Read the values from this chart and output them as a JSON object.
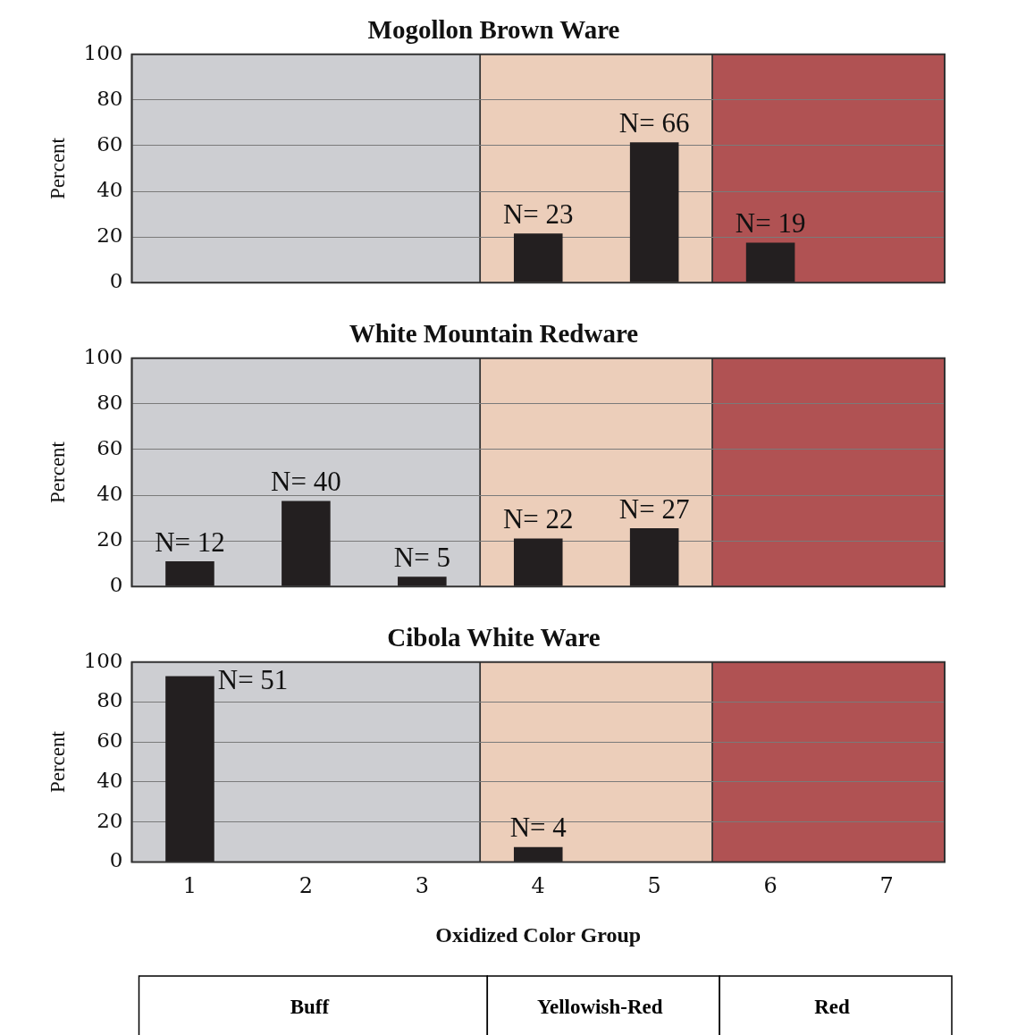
{
  "chart_data": [
    {
      "type": "bar",
      "title": "Mogollon Brown Ware",
      "ylabel": "Percent",
      "categories": [
        "1",
        "2",
        "3",
        "4",
        "5",
        "6",
        "7"
      ],
      "values": [
        null,
        null,
        null,
        21.5,
        61.5,
        17.5,
        null
      ],
      "color": "#231f20",
      "ylim": [
        0,
        100
      ],
      "yticks": [
        0,
        20,
        40,
        60,
        80,
        100
      ],
      "grid": "y",
      "tick_labels": "y",
      "annotations": [
        {
          "text": "N= 23",
          "x": "4",
          "y": 21.5
        },
        {
          "text": "N= 66",
          "x": "5",
          "y": 61.5
        },
        {
          "text": "N= 19",
          "x": "6",
          "y": 17.5
        }
      ],
      "bands": [
        {
          "axis": "x",
          "from": "1",
          "to": "3",
          "color": "#cdced2"
        },
        {
          "axis": "x",
          "from": "4",
          "to": "5",
          "color": "#ecceba"
        },
        {
          "axis": "x",
          "from": "6",
          "to": "7",
          "color": "#b05253"
        }
      ]
    },
    {
      "type": "bar",
      "title": "White Mountain Redware",
      "ylabel": "Percent",
      "categories": [
        "1",
        "2",
        "3",
        "4",
        "5",
        "6",
        "7"
      ],
      "values": [
        11,
        37.5,
        4.3,
        21,
        25.5,
        null,
        null
      ],
      "color": "#231f20",
      "ylim": [
        0,
        100
      ],
      "yticks": [
        0,
        20,
        40,
        60,
        80,
        100
      ],
      "grid": "y",
      "tick_labels": "y",
      "annotations": [
        {
          "text": "N= 12",
          "x": "1",
          "y": 11
        },
        {
          "text": "N= 40",
          "x": "2",
          "y": 37.5
        },
        {
          "text": "N= 5",
          "x": "3",
          "y": 4.3
        },
        {
          "text": "N= 22",
          "x": "4",
          "y": 21
        },
        {
          "text": "N= 27",
          "x": "5",
          "y": 25.5
        }
      ],
      "bands": [
        {
          "axis": "x",
          "from": "1",
          "to": "3",
          "color": "#cdced2"
        },
        {
          "axis": "x",
          "from": "4",
          "to": "5",
          "color": "#ecceba"
        },
        {
          "axis": "x",
          "from": "6",
          "to": "7",
          "color": "#b05253"
        }
      ]
    },
    {
      "type": "bar",
      "title": "Cibola White Ware",
      "ylabel": "Percent",
      "xlabel": "Oxidized Color Group",
      "categories": [
        "1",
        "2",
        "3",
        "4",
        "5",
        "6",
        "7"
      ],
      "values": [
        93,
        null,
        null,
        7.5,
        null,
        null,
        null
      ],
      "color": "#231f20",
      "ylim": [
        0,
        100
      ],
      "yticks": [
        0,
        20,
        40,
        60,
        80,
        100
      ],
      "grid": "y",
      "annotations": [
        {
          "text": "N= 51",
          "x": "1",
          "y": 93
        },
        {
          "text": "N= 4",
          "x": "4",
          "y": 7.5
        },
        "Buff",
        "Yellowish-Red",
        "Red"
      ],
      "bands": [
        {
          "axis": "x",
          "from": "1",
          "to": "3",
          "color": "#cdced2"
        },
        {
          "axis": "x",
          "from": "4",
          "to": "5",
          "color": "#ecceba"
        },
        {
          "axis": "x",
          "from": "6",
          "to": "7",
          "color": "#b05253"
        }
      ]
    }
  ]
}
